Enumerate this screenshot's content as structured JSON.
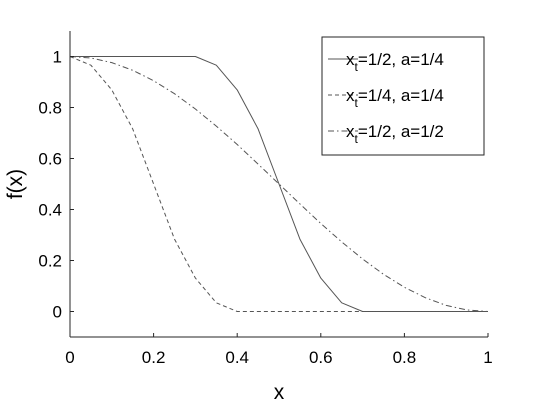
{
  "chart_data": {
    "type": "line",
    "xlabel": "x",
    "ylabel": "f(x)",
    "xlim": [
      0,
      1
    ],
    "ylim": [
      -0.1,
      1.1
    ],
    "xticks": [
      0,
      0.2,
      0.4,
      0.6,
      0.8,
      1
    ],
    "xtick_labels": [
      "0",
      "0.2",
      "0.4",
      "0.6",
      "0.8",
      "1"
    ],
    "yticks": [
      0,
      0.2,
      0.4,
      0.6,
      0.8,
      1
    ],
    "ytick_labels": [
      "0",
      "0.2",
      "0.4",
      "0.6",
      "0.8",
      "1"
    ],
    "grid": false,
    "legend_position": "top-right",
    "series": [
      {
        "name": "x_t=1/2, a=1/4",
        "legend": {
          "pre": "x",
          "sub": "t",
          "post": "=1/2, a=1/4"
        },
        "style": "solid",
        "color": "#555555",
        "x": [
          0,
          0.05,
          0.1,
          0.15,
          0.2,
          0.25,
          0.3,
          0.35,
          0.4,
          0.45,
          0.5,
          0.55,
          0.6,
          0.65,
          0.7,
          0.75,
          0.8,
          0.85,
          0.9,
          0.95,
          1
        ],
        "y": [
          1,
          1,
          1,
          1,
          1,
          1,
          1,
          0.966,
          0.869,
          0.716,
          0.5,
          0.284,
          0.131,
          0.034,
          0,
          0,
          0,
          0,
          0,
          0,
          0
        ]
      },
      {
        "name": "x_t=1/4, a=1/4",
        "legend": {
          "pre": "x",
          "sub": "t",
          "post": "=1/4, a=1/4"
        },
        "style": "dashed",
        "color": "#555555",
        "x": [
          0,
          0.05,
          0.1,
          0.15,
          0.2,
          0.25,
          0.3,
          0.35,
          0.4,
          0.45,
          0.5,
          0.55,
          0.6,
          0.65,
          0.7,
          0.75,
          0.8,
          0.85,
          0.9,
          0.95,
          1
        ],
        "y": [
          1,
          0.966,
          0.869,
          0.716,
          0.5,
          0.284,
          0.131,
          0.034,
          0,
          0,
          0,
          0,
          0,
          0,
          0,
          0,
          0,
          0,
          0,
          0,
          0
        ]
      },
      {
        "name": "x_t=1/2, a=1/2",
        "legend": {
          "pre": "x",
          "sub": "t",
          "post": "=1/2, a=1/2"
        },
        "style": "dashdot",
        "color": "#555555",
        "x": [
          0,
          0.05,
          0.1,
          0.15,
          0.2,
          0.25,
          0.3,
          0.35,
          0.4,
          0.45,
          0.5,
          0.55,
          0.6,
          0.65,
          0.7,
          0.75,
          0.8,
          0.85,
          0.9,
          0.95,
          1
        ],
        "y": [
          1,
          0.994,
          0.976,
          0.946,
          0.905,
          0.854,
          0.794,
          0.727,
          0.655,
          0.578,
          0.5,
          0.422,
          0.345,
          0.273,
          0.206,
          0.146,
          0.095,
          0.054,
          0.024,
          0.006,
          0
        ]
      }
    ]
  }
}
